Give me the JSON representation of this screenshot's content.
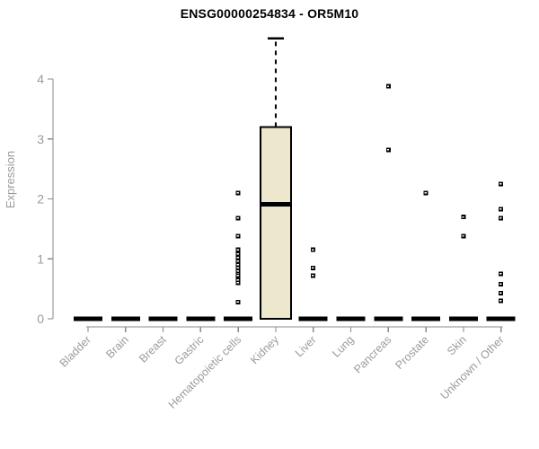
{
  "chart_data": {
    "type": "boxplot",
    "title": "ENSG00000254834 - OR5M10",
    "ylabel": "Expression",
    "xlabel": "",
    "ylim": [
      0,
      4.8
    ],
    "yticks": [
      0,
      1,
      2,
      3,
      4
    ],
    "grid": false,
    "legend": false,
    "categories": [
      "Bladder",
      "Brain",
      "Breast",
      "Gastric",
      "Hematopoietic cells",
      "Kidney",
      "Liver",
      "Lung",
      "Pancreas",
      "Prostate",
      "Skin",
      "Unknown / Other"
    ],
    "series": [
      {
        "category": "Bladder",
        "q1": 0,
        "median": 0,
        "q3": 0,
        "whisker_low": 0,
        "whisker_high": 0,
        "outliers": []
      },
      {
        "category": "Brain",
        "q1": 0,
        "median": 0,
        "q3": 0,
        "whisker_low": 0,
        "whisker_high": 0,
        "outliers": []
      },
      {
        "category": "Breast",
        "q1": 0,
        "median": 0,
        "q3": 0,
        "whisker_low": 0,
        "whisker_high": 0,
        "outliers": []
      },
      {
        "category": "Gastric",
        "q1": 0,
        "median": 0,
        "q3": 0,
        "whisker_low": 0,
        "whisker_high": 0,
        "outliers": []
      },
      {
        "category": "Hematopoietic cells",
        "q1": 0,
        "median": 0,
        "q3": 0,
        "whisker_low": 0,
        "whisker_high": 0,
        "outliers": [
          2.1,
          1.68,
          1.38,
          1.15,
          1.08,
          1.02,
          0.96,
          0.9,
          0.85,
          0.8,
          0.75,
          0.72,
          0.65,
          0.6,
          0.28
        ]
      },
      {
        "category": "Kidney",
        "q1": 0,
        "median": 1.91,
        "q3": 3.2,
        "whisker_low": 0,
        "whisker_high": 4.68,
        "outliers": []
      },
      {
        "category": "Liver",
        "q1": 0,
        "median": 0,
        "q3": 0,
        "whisker_low": 0,
        "whisker_high": 0,
        "outliers": [
          1.15,
          0.85,
          0.72
        ]
      },
      {
        "category": "Lung",
        "q1": 0,
        "median": 0,
        "q3": 0,
        "whisker_low": 0,
        "whisker_high": 0,
        "outliers": []
      },
      {
        "category": "Pancreas",
        "q1": 0,
        "median": 0,
        "q3": 0,
        "whisker_low": 0,
        "whisker_high": 0,
        "outliers": [
          3.88,
          2.82
        ]
      },
      {
        "category": "Prostate",
        "q1": 0,
        "median": 0,
        "q3": 0,
        "whisker_low": 0,
        "whisker_high": 0,
        "outliers": [
          2.1
        ]
      },
      {
        "category": "Skin",
        "q1": 0,
        "median": 0,
        "q3": 0,
        "whisker_low": 0,
        "whisker_high": 0,
        "outliers": [
          1.7,
          1.38
        ]
      },
      {
        "category": "Unknown / Other",
        "q1": 0,
        "median": 0,
        "q3": 0,
        "whisker_low": 0,
        "whisker_high": 0,
        "outliers": [
          2.25,
          1.83,
          1.68,
          0.75,
          0.58,
          0.43,
          0.3
        ]
      }
    ],
    "colors": {
      "box_fill": "#ede7cd",
      "box_stroke": "#000000",
      "median": "#000000",
      "zero_bar": "#000000",
      "outlier": "#000000",
      "axis": "#8a8a8a",
      "tick_label": "#9b9b9b",
      "title": "#000000"
    }
  }
}
